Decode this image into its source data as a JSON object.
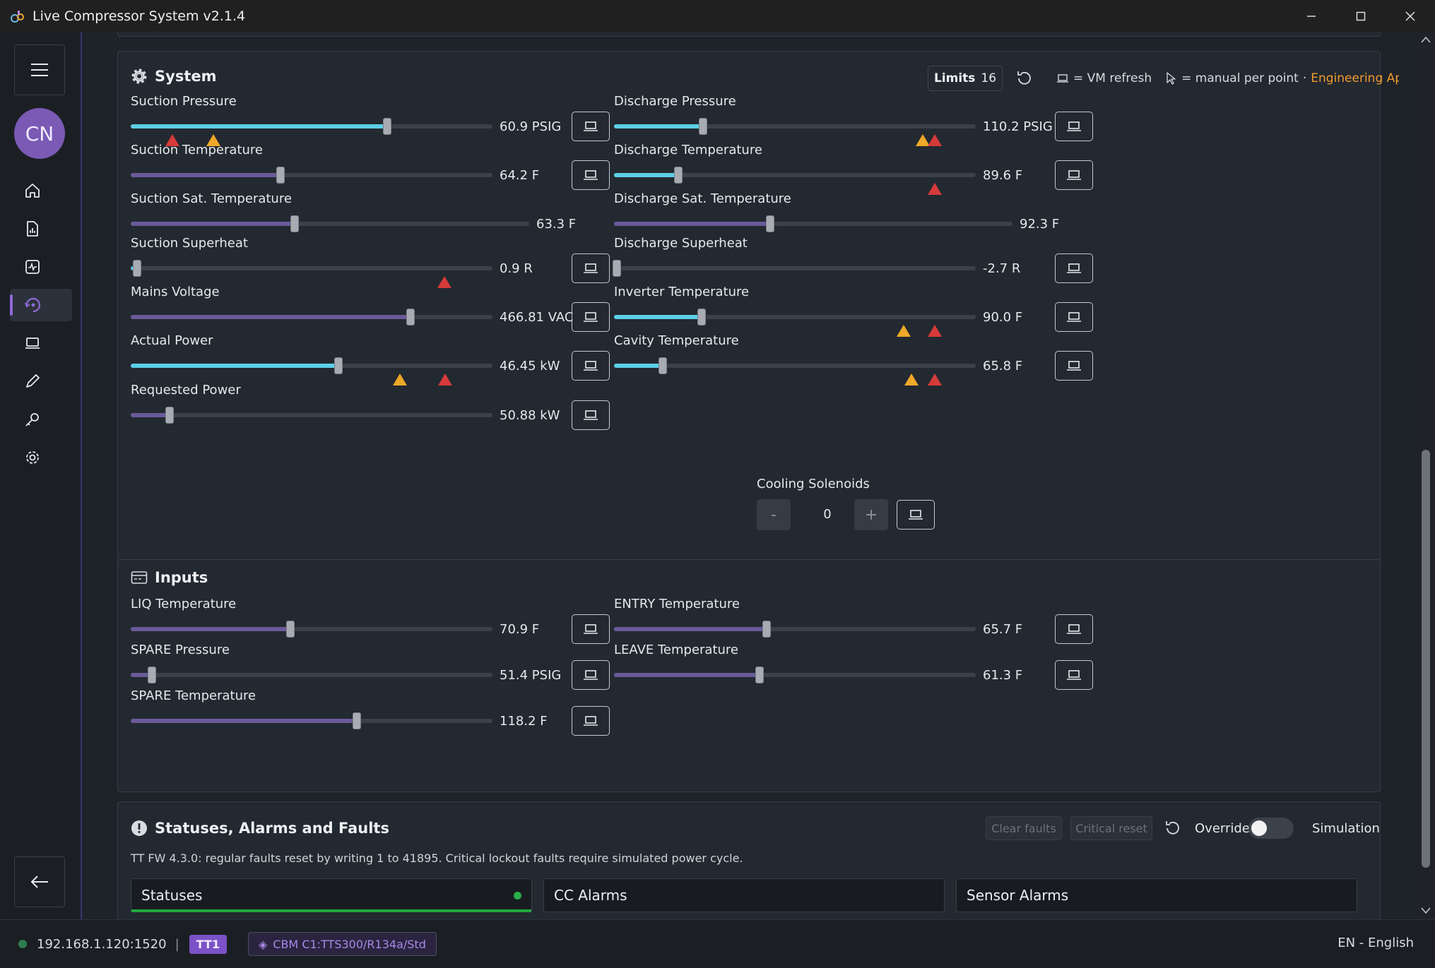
{
  "window": {
    "title": "Live Compressor System v2.1.4"
  },
  "sidebar": {
    "avatar_initials": "CN",
    "active_index": 3
  },
  "system": {
    "title": "System",
    "limits_label": "Limits",
    "limits_count": "16",
    "vm_refresh_legend": "= VM refresh",
    "manual_legend": "= manual per point",
    "separator": "·",
    "approval": "Engineering Approved",
    "left": [
      {
        "label": "Suction Pressure",
        "value": "60.9 PSIG",
        "fraction": 0.709,
        "fill": "cyan",
        "markers": [
          {
            "pos": 0.115,
            "kind": "alarm"
          },
          {
            "pos": 0.228,
            "kind": "warn"
          }
        ],
        "vm": true
      },
      {
        "label": "Suction Temperature",
        "value": "64.2 F",
        "fraction": 0.415,
        "fill": "purple",
        "markers": [],
        "vm": true
      },
      {
        "label": "Suction Sat. Temperature",
        "value": "63.3 F",
        "fraction": 0.411,
        "fill": "purple",
        "markers": [],
        "vm": false
      },
      {
        "label": "Suction Superheat",
        "value": "0.9 R",
        "fraction": 0.018,
        "fill": "cyan",
        "markers": [
          {
            "pos": 0.867,
            "kind": "alarm"
          }
        ],
        "vm": true
      },
      {
        "label": "Mains Voltage",
        "value": "466.81 VAC",
        "fraction": 0.773,
        "fill": "purple",
        "markers": [],
        "vm": true
      },
      {
        "label": "Actual Power",
        "value": "46.45 kW",
        "fraction": 0.575,
        "fill": "cyan",
        "markers": [
          {
            "pos": 0.745,
            "kind": "warn"
          },
          {
            "pos": 0.87,
            "kind": "alarm"
          }
        ],
        "vm": true
      },
      {
        "label": "Requested Power",
        "value": "50.88 kW",
        "fraction": 0.108,
        "fill": "purple",
        "markers": [],
        "vm": true
      }
    ],
    "right": [
      {
        "label": "Discharge Pressure",
        "value": "110.2 PSIG",
        "fraction": 0.247,
        "fill": "cyan",
        "markers": [
          {
            "pos": 0.853,
            "kind": "warn"
          },
          {
            "pos": 0.887,
            "kind": "alarm"
          }
        ],
        "vm": true
      },
      {
        "label": "Discharge Temperature",
        "value": "89.6 F",
        "fraction": 0.177,
        "fill": "cyan",
        "markers": [
          {
            "pos": 0.887,
            "kind": "alarm"
          }
        ],
        "vm": true
      },
      {
        "label": "Discharge Sat. Temperature",
        "value": "92.3 F",
        "fraction": 0.391,
        "fill": "purple",
        "markers": [],
        "vm": false
      },
      {
        "label": "Discharge Superheat",
        "value": "-2.7 R",
        "fraction": 0.008,
        "fill": "purple",
        "markers": [],
        "vm": true
      },
      {
        "label": "Inverter Temperature",
        "value": "90.0 F",
        "fraction": 0.243,
        "fill": "cyan",
        "markers": [
          {
            "pos": 0.8,
            "kind": "warn"
          },
          {
            "pos": 0.887,
            "kind": "alarm"
          }
        ],
        "vm": true
      },
      {
        "label": "Cavity Temperature",
        "value": "65.8 F",
        "fraction": 0.135,
        "fill": "cyan",
        "markers": [
          {
            "pos": 0.823,
            "kind": "warn"
          },
          {
            "pos": 0.887,
            "kind": "alarm"
          }
        ],
        "vm": true
      }
    ],
    "cooling": {
      "label": "Cooling Solenoids",
      "value": "0",
      "minus": "-",
      "plus": "+"
    }
  },
  "inputs": {
    "title": "Inputs",
    "left": [
      {
        "label": "LIQ Temperature",
        "value": "70.9 F",
        "fraction": 0.441,
        "fill": "purple"
      },
      {
        "label": "SPARE Pressure",
        "value": "51.4 PSIG",
        "fraction": 0.059,
        "fill": "purple"
      },
      {
        "label": "SPARE Temperature",
        "value": "118.2 F",
        "fraction": 0.625,
        "fill": "purple"
      }
    ],
    "right": [
      {
        "label": "ENTRY Temperature",
        "value": "65.7 F",
        "fraction": 0.421,
        "fill": "purple"
      },
      {
        "label": "LEAVE Temperature",
        "value": "61.3 F",
        "fraction": 0.403,
        "fill": "purple"
      }
    ]
  },
  "statuses": {
    "title": "Statuses, Alarms and Faults",
    "clear_faults": "Clear faults",
    "critical_reset": "Critical reset",
    "override": "Override",
    "simulation": "Simulation",
    "note": "TT FW 4.3.0: regular faults reset by writing 1 to 41895. Critical lockout faults require simulated power cycle.",
    "tabs": [
      "Statuses",
      "CC Alarms",
      "Sensor Alarms"
    ]
  },
  "statusbar": {
    "address": "192.168.1.120:1520",
    "divider": "|",
    "tt_badge": "TT1",
    "model_icon": "◈",
    "model": "CBM C1:TTS300/R134a/Std",
    "language": "EN - English"
  },
  "colors": {
    "accent": "#8e6ad8",
    "cyan": "#5ccfe6",
    "purple": "#6a5a9a",
    "alarm": "#d63a3a",
    "warn": "#f0a828",
    "approved": "#f29a2e"
  }
}
